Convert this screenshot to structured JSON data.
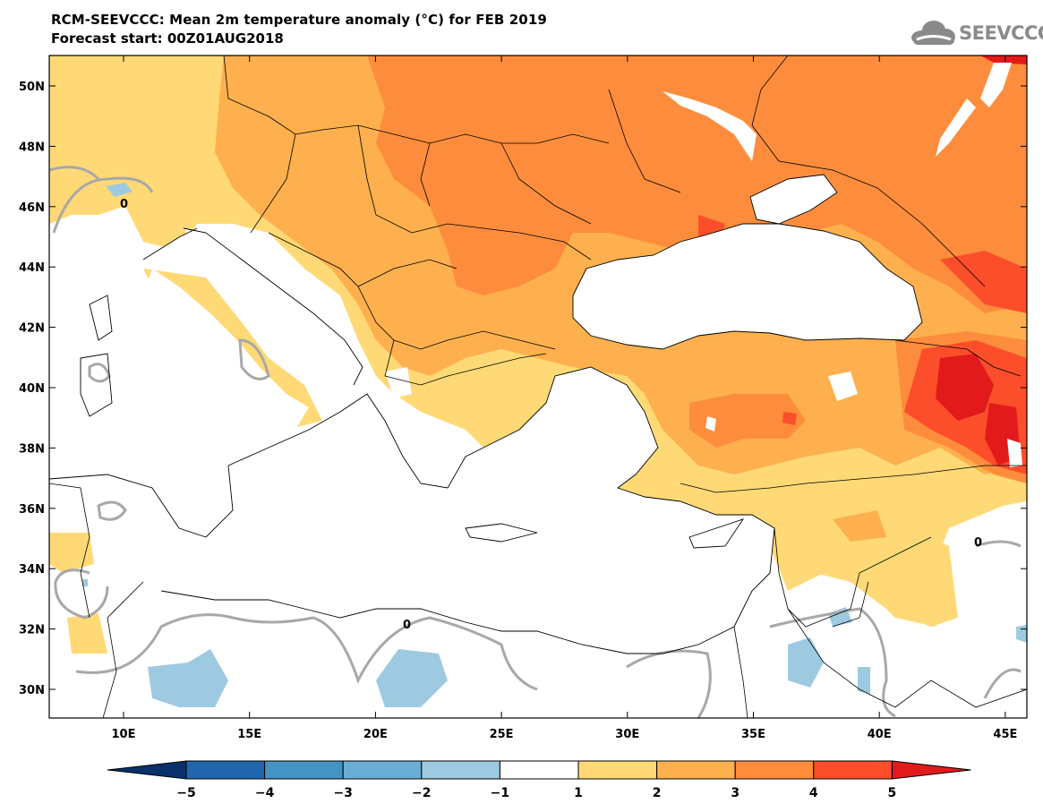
{
  "header": {
    "title": "RCM-SEEVCCC: Mean 2m temperature anomaly (°C) for FEB 2019",
    "subtitle": "Forecast start: 00Z01AUG2018",
    "logo_text": "SEEVCCC",
    "logo_icon": "cloud-icon"
  },
  "map": {
    "lat_labels": [
      "50N",
      "48N",
      "46N",
      "44N",
      "42N",
      "40N",
      "38N",
      "36N",
      "34N",
      "32N",
      "30N"
    ],
    "lon_labels": [
      "10E",
      "15E",
      "20E",
      "25E",
      "30E",
      "35E",
      "40E",
      "45E"
    ],
    "contour_label": "0",
    "colors": {
      "land_border": "#000000",
      "sea": "#ffffff",
      "zero_contour": "#a8a8a8"
    }
  },
  "colorbar": {
    "ticks": [
      "−5",
      "−4",
      "−3",
      "−2",
      "−1",
      "1",
      "2",
      "3",
      "4",
      "5"
    ],
    "colors": [
      "#08306b",
      "#2166ac",
      "#4393c3",
      "#6aaed6",
      "#9ecae1",
      "#ffffff",
      "#fed976",
      "#fdb04d",
      "#fd8d3c",
      "#fc4e2a",
      "#e31a1c"
    ]
  }
}
